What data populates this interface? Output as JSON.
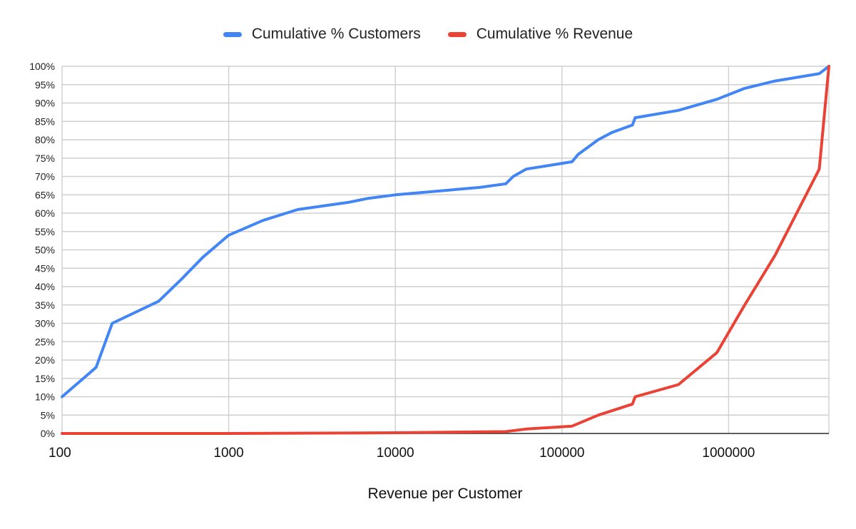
{
  "chart_data": {
    "type": "line",
    "title": "",
    "xlabel": "Revenue per Customer",
    "ylabel": "",
    "x_scale": "log",
    "xlim": [
      100,
      4000000
    ],
    "ylim": [
      0,
      1
    ],
    "grid": true,
    "legend_position": "top",
    "x_ticks": [
      "100",
      "1000",
      "10000",
      "100000",
      "1000000"
    ],
    "x_tick_values": [
      100,
      1000,
      10000,
      100000,
      1000000
    ],
    "y_ticks": [
      "0%",
      "5%",
      "10%",
      "15%",
      "20%",
      "25%",
      "30%",
      "35%",
      "40%",
      "45%",
      "50%",
      "55%",
      "60%",
      "65%",
      "70%",
      "75%",
      "80%",
      "85%",
      "90%",
      "95%",
      "100%"
    ],
    "y_tick_values": [
      0,
      0.05,
      0.1,
      0.15,
      0.2,
      0.25,
      0.3,
      0.35,
      0.4,
      0.45,
      0.5,
      0.55,
      0.6,
      0.65,
      0.7,
      0.75,
      0.8,
      0.85,
      0.9,
      0.95,
      1.0
    ],
    "series": [
      {
        "name": "Cumulative % Customers",
        "color": "#4285F4",
        "points": [
          [
            100,
            0.1
          ],
          [
            160,
            0.18
          ],
          [
            200,
            0.3
          ],
          [
            380,
            0.36
          ],
          [
            520,
            0.42
          ],
          [
            700,
            0.48
          ],
          [
            1000,
            0.54
          ],
          [
            1600,
            0.58
          ],
          [
            2600,
            0.61
          ],
          [
            5300,
            0.63
          ],
          [
            6800,
            0.64
          ],
          [
            10000,
            0.65
          ],
          [
            32000,
            0.67
          ],
          [
            46000,
            0.68
          ],
          [
            51000,
            0.7
          ],
          [
            61000,
            0.72
          ],
          [
            115000,
            0.74
          ],
          [
            125000,
            0.76
          ],
          [
            165000,
            0.8
          ],
          [
            200000,
            0.82
          ],
          [
            265000,
            0.84
          ],
          [
            275000,
            0.86
          ],
          [
            500000,
            0.88
          ],
          [
            850000,
            0.91
          ],
          [
            1250000,
            0.94
          ],
          [
            1900000,
            0.96
          ],
          [
            3500000,
            0.98
          ],
          [
            4000000,
            1.0
          ]
        ]
      },
      {
        "name": "Cumulative % Revenue",
        "color": "#EA4335",
        "points": [
          [
            100,
            0.0
          ],
          [
            1000,
            0.0
          ],
          [
            10000,
            0.002
          ],
          [
            46000,
            0.005
          ],
          [
            61000,
            0.012
          ],
          [
            115000,
            0.02
          ],
          [
            165000,
            0.05
          ],
          [
            265000,
            0.08
          ],
          [
            275000,
            0.1
          ],
          [
            500000,
            0.133
          ],
          [
            850000,
            0.22
          ],
          [
            1250000,
            0.35
          ],
          [
            1900000,
            0.485
          ],
          [
            3500000,
            0.72
          ],
          [
            4000000,
            1.0
          ]
        ]
      }
    ]
  }
}
